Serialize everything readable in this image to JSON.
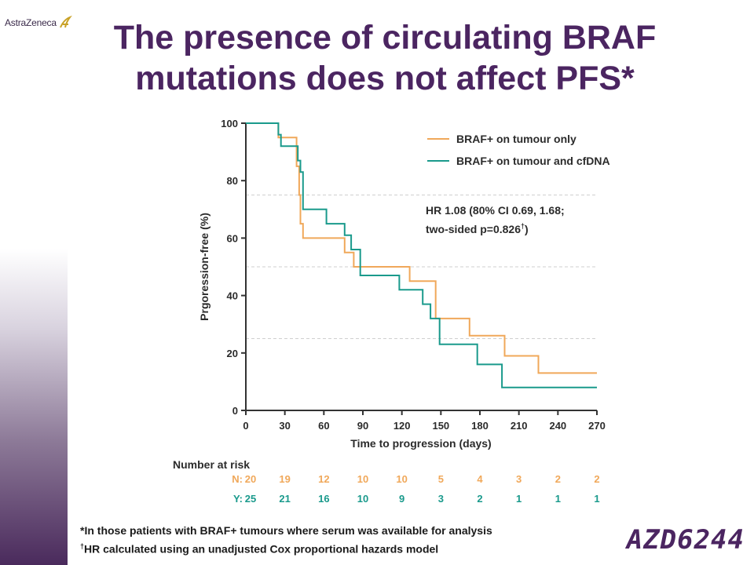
{
  "logo": {
    "text": "AstraZeneca"
  },
  "title": "The presence of circulating BRAF mutations does not affect PFS*",
  "footnotes": {
    "line1": "*In those patients with BRAF+ tumours where serum was available for analysis",
    "line2_mark": "†",
    "line2": "HR calculated using an unadjusted Cox proportional hazards model"
  },
  "product": "AZD6244",
  "colors": {
    "tumour_only": "#f0a85a",
    "tumour_and_cfdna": "#1a9a8c",
    "title": "#4b2561"
  },
  "chart_data": {
    "type": "line",
    "step": true,
    "xlabel": "Time to progression (days)",
    "ylabel": "Prgoression-free (%)",
    "xlim": [
      0,
      270
    ],
    "ylim": [
      0,
      100
    ],
    "xticks": [
      0,
      30,
      60,
      90,
      120,
      150,
      180,
      210,
      240,
      270
    ],
    "yticks": [
      0,
      20,
      40,
      60,
      80,
      100
    ],
    "ref_lines": [
      25,
      50,
      75
    ],
    "legend_position": "top-right",
    "series": [
      {
        "name": "BRAF+ on tumour only",
        "color": "#f0a85a",
        "points": [
          [
            0,
            100
          ],
          [
            25,
            100
          ],
          [
            25,
            95
          ],
          [
            39,
            95
          ],
          [
            39,
            85
          ],
          [
            41,
            85
          ],
          [
            41,
            75
          ],
          [
            42,
            75
          ],
          [
            42,
            65
          ],
          [
            44,
            65
          ],
          [
            44,
            60
          ],
          [
            76,
            60
          ],
          [
            76,
            55
          ],
          [
            83,
            55
          ],
          [
            83,
            50
          ],
          [
            126,
            50
          ],
          [
            126,
            45
          ],
          [
            146,
            45
          ],
          [
            146,
            32
          ],
          [
            172,
            32
          ],
          [
            172,
            26
          ],
          [
            199,
            26
          ],
          [
            199,
            19
          ],
          [
            225,
            19
          ],
          [
            225,
            13
          ],
          [
            270,
            13
          ]
        ]
      },
      {
        "name": "BRAF+ on tumour and cfDNA",
        "color": "#1a9a8c",
        "points": [
          [
            0,
            100
          ],
          [
            25,
            100
          ],
          [
            25,
            96
          ],
          [
            27,
            96
          ],
          [
            27,
            92
          ],
          [
            40,
            92
          ],
          [
            40,
            87
          ],
          [
            42,
            87
          ],
          [
            42,
            83
          ],
          [
            44,
            83
          ],
          [
            44,
            70
          ],
          [
            62,
            70
          ],
          [
            62,
            65
          ],
          [
            76,
            65
          ],
          [
            76,
            61
          ],
          [
            81,
            61
          ],
          [
            81,
            56
          ],
          [
            88,
            56
          ],
          [
            88,
            47
          ],
          [
            118,
            47
          ],
          [
            118,
            42
          ],
          [
            136,
            42
          ],
          [
            136,
            37
          ],
          [
            142,
            37
          ],
          [
            142,
            32
          ],
          [
            149,
            32
          ],
          [
            149,
            23
          ],
          [
            178,
            23
          ],
          [
            178,
            16
          ],
          [
            197,
            16
          ],
          [
            197,
            8
          ],
          [
            270,
            8
          ]
        ]
      }
    ],
    "annotation": {
      "line1": "HR 1.08 (80% CI 0.69, 1.68;",
      "line2_pre": "two-sided p=0.826",
      "line2_mark": "†",
      "line2_post": ")"
    },
    "number_at_risk": {
      "title": "Number at risk",
      "rows": [
        {
          "label": "N:",
          "color": "#f0a85a",
          "values": [
            20,
            19,
            12,
            10,
            10,
            5,
            4,
            3,
            2,
            2
          ]
        },
        {
          "label": "Y:",
          "color": "#1a9a8c",
          "values": [
            25,
            21,
            16,
            10,
            9,
            3,
            2,
            1,
            1,
            1
          ]
        }
      ]
    }
  }
}
